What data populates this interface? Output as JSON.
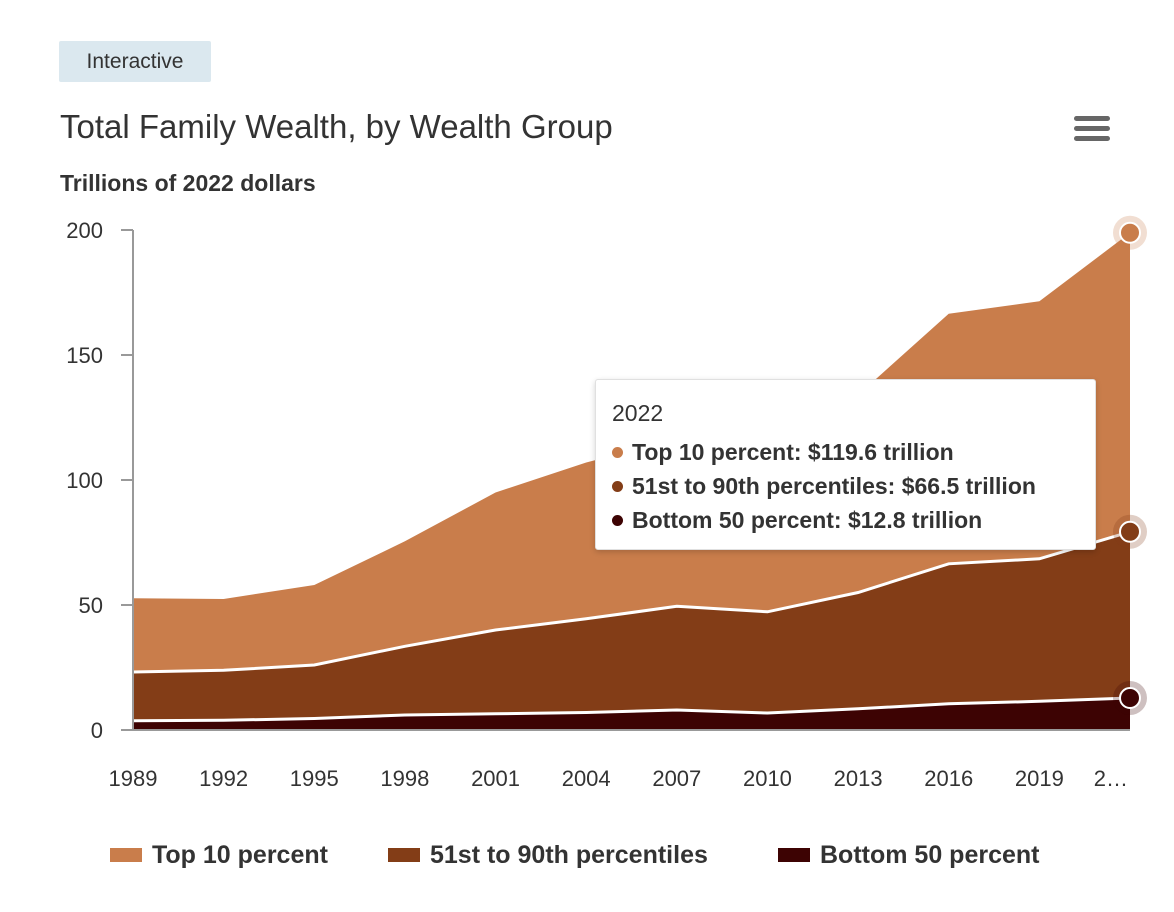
{
  "badge": "Interactive",
  "title": "Total Family Wealth, by Wealth Group",
  "menu_icon": "hamburger-menu-icon",
  "chart_data": {
    "type": "area",
    "stacked": true,
    "title": "Total Family Wealth, by Wealth Group",
    "ylabel": "Trillions of 2022 dollars",
    "xlabel": "",
    "ylim": [
      0,
      200
    ],
    "y_ticks": [
      "0",
      "50",
      "100",
      "150",
      "200"
    ],
    "x": [
      1989,
      1992,
      1995,
      1998,
      2001,
      2004,
      2007,
      2010,
      2013,
      2016,
      2019,
      2022
    ],
    "x_tick_labels": [
      "1989",
      "1992",
      "1995",
      "1998",
      "2001",
      "2004",
      "2007",
      "2010",
      "2013",
      "2016",
      "2019",
      "2…"
    ],
    "series": [
      {
        "name": "Bottom 50 percent",
        "color": "#3d0303",
        "values": [
          3.7,
          3.9,
          4.6,
          6.0,
          6.5,
          7.0,
          8.0,
          6.8,
          8.5,
          10.5,
          11.5,
          12.8
        ]
      },
      {
        "name": "51st to 90th percentiles",
        "color": "#833d17",
        "values": [
          19.5,
          20.0,
          21.4,
          27.5,
          33.5,
          37.5,
          41.5,
          40.5,
          46.5,
          56.0,
          57.0,
          66.5
        ]
      },
      {
        "name": "Top 10 percent",
        "color": "#c97d4b",
        "values": [
          29.5,
          28.5,
          32.0,
          42.0,
          55.0,
          62.5,
          67.0,
          73.0,
          79.0,
          100.0,
          103.0,
          119.6
        ]
      }
    ],
    "legend": [
      "Top 10 percent",
      "51st to 90th percentiles",
      "Bottom 50 percent"
    ],
    "grid": false,
    "legend_position": "bottom"
  },
  "tooltip": {
    "year": "2022",
    "rows": [
      {
        "text": "Top 10 percent: $119.6 trillion",
        "color": "#c97d4b"
      },
      {
        "text": "51st to 90th percentiles: $66.5 trillion",
        "color": "#833d17"
      },
      {
        "text": "Bottom 50 percent: $12.8 trillion",
        "color": "#3d0303"
      }
    ]
  }
}
